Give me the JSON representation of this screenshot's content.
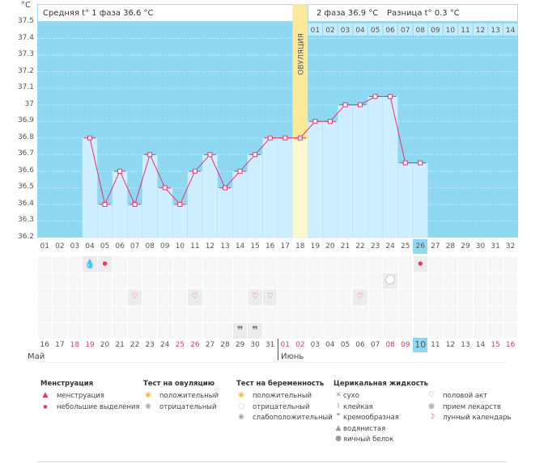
{
  "header": {
    "unit": "°C",
    "phase1": "Средняя t° 1 фаза 36.6 °C",
    "phase2": "2 фаза 36.9 °C",
    "diff": "Разница t° 0.3 °C",
    "ovulation": "ОВУЛЯЦИЯ"
  },
  "chart_data": {
    "type": "bar",
    "title": "",
    "ylabel": "°C",
    "ylim": [
      36.2,
      37.5
    ],
    "yticks": [
      "37.5",
      "37.4",
      "37.3",
      "37.2",
      "37.1",
      "37",
      "36.9",
      "36.8",
      "36.7",
      "36.6",
      "36.5",
      "36.4",
      "36.3",
      "36.2"
    ],
    "cycle_days": [
      "01",
      "02",
      "03",
      "04",
      "05",
      "06",
      "07",
      "08",
      "09",
      "10",
      "11",
      "12",
      "13",
      "14",
      "15",
      "16",
      "17",
      "18",
      "19",
      "20",
      "21",
      "22",
      "23",
      "24",
      "25",
      "26",
      "27",
      "28",
      "29",
      "30",
      "31",
      "32"
    ],
    "values": [
      null,
      null,
      null,
      36.8,
      36.4,
      36.6,
      36.4,
      36.7,
      36.5,
      36.4,
      36.6,
      36.7,
      36.5,
      36.6,
      36.7,
      36.8,
      36.8,
      36.8,
      36.9,
      36.9,
      37.0,
      37.0,
      37.05,
      37.05,
      36.65,
      36.65,
      null,
      null,
      null,
      null,
      null,
      null
    ],
    "ovulation_day": 18,
    "current_day": 26,
    "phase2_days": [
      "01",
      "02",
      "03",
      "04",
      "05",
      "06",
      "07",
      "08",
      "09",
      "10",
      "11",
      "12",
      "13",
      "14"
    ]
  },
  "dates": [
    "16",
    "17",
    "18",
    "19",
    "20",
    "21",
    "22",
    "23",
    "24",
    "25",
    "26",
    "27",
    "28",
    "29",
    "30",
    "31",
    "01",
    "02",
    "03",
    "04",
    "05",
    "06",
    "07",
    "08",
    "09",
    "10",
    "11",
    "12",
    "13",
    "14",
    "15",
    "16"
  ],
  "weekend_idx": [
    2,
    3,
    9,
    10,
    16,
    17,
    23,
    24,
    30,
    31
  ],
  "months": [
    "Май",
    "Июнь"
  ],
  "marks": {
    "menstruation_big": [
      4
    ],
    "menstruation_small": [
      5,
      26
    ],
    "pregnancy_negative": [
      24
    ],
    "sex": [
      7,
      11,
      15,
      16,
      22
    ],
    "creamy": [
      14,
      15
    ]
  },
  "colors": {
    "bg": "#8fd8f2",
    "bar": "#cdefff",
    "line": "#e8336d",
    "ovulation": "#fbe99a"
  },
  "legend": [
    {
      "title": "Менструация",
      "items": [
        "менструация",
        "небольшие выделения"
      ]
    },
    {
      "title": "Тест на овуляцию",
      "items": [
        "положительный",
        "отрицательный"
      ]
    },
    {
      "title": "Тест на беременность",
      "items": [
        "положительный",
        "отрицательный",
        "слабоположительный"
      ]
    },
    {
      "title": "Церикальная жидкость",
      "items": [
        "сухо",
        "клейкая",
        "кремообразная",
        "водянистая",
        "яичный белок"
      ]
    },
    {
      "title": "",
      "items": [
        "половой акт",
        "прием лекарств",
        "лунный календарь"
      ]
    }
  ]
}
